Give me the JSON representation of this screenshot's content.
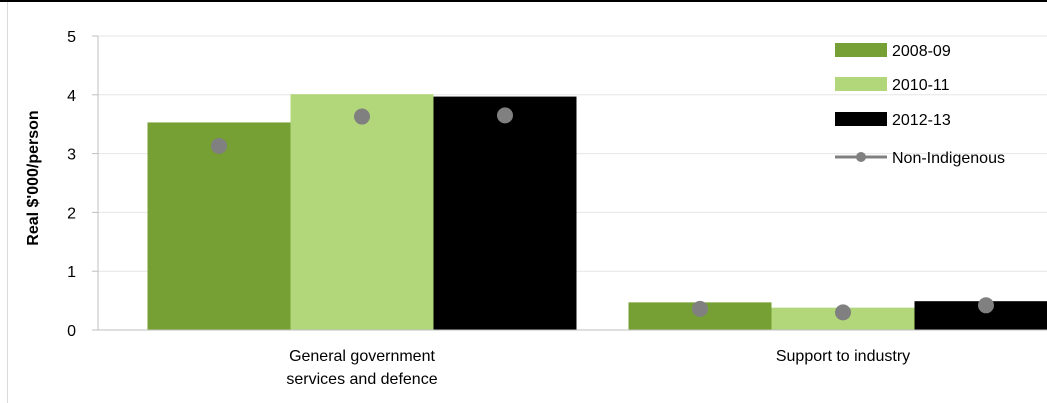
{
  "chart_data": {
    "type": "bar",
    "title": "",
    "xlabel": "",
    "ylabel": "Real $'000/person",
    "ylim": [
      0,
      5
    ],
    "yticks": [
      "0",
      "1",
      "2",
      "3",
      "4",
      "5"
    ],
    "categories": [
      [
        "General government",
        "services and defence"
      ],
      [
        "Support to industry"
      ]
    ],
    "series": [
      {
        "name": "2008-09",
        "color": "#76a033",
        "values": [
          3.53,
          0.47
        ]
      },
      {
        "name": "2010-11",
        "color": "#b2d77a",
        "values": [
          4.01,
          0.38
        ]
      },
      {
        "name": "2012-13",
        "color": "#000000",
        "values": [
          3.97,
          0.49
        ]
      }
    ],
    "overlay": {
      "name": "Non-Indigenous",
      "type": "marker",
      "color": "#808080",
      "values": [
        [
          3.13,
          3.63,
          3.65
        ],
        [
          0.36,
          0.3,
          0.42
        ]
      ]
    },
    "grid": true,
    "legend_position": "top-right"
  }
}
